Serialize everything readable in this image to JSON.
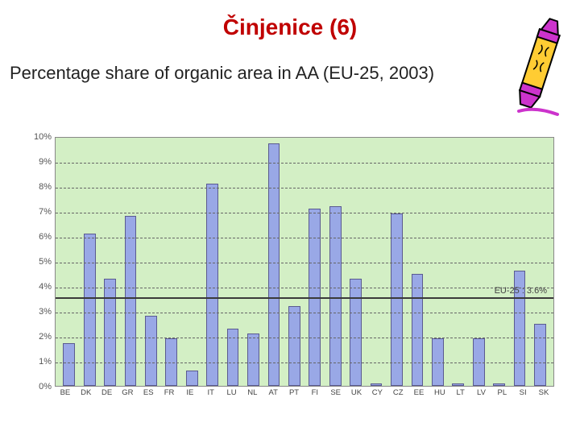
{
  "title": "Činjenice (6)",
  "subtitle": "Percentage share of organic area in AA (EU-25, 2003)",
  "chart": {
    "type": "bar",
    "background_color": "#d3efc5",
    "grid_color": "#666666",
    "bar_fill": "#99a8e6",
    "bar_border": "#5a5a90",
    "axis_font_family": "Arial",
    "ylabel_fontsize": 11,
    "xlabel_fontsize": 9.5,
    "ylim": [
      0,
      10
    ],
    "ytick_step": 1,
    "yticks": [
      "0%",
      "1%",
      "2%",
      "3%",
      "4%",
      "5%",
      "6%",
      "7%",
      "8%",
      "9%",
      "10%"
    ],
    "reference_line": {
      "value": 3.6,
      "label": "EU-25 : 3.6%",
      "color": "#3a3a3a"
    },
    "categories": [
      "BE",
      "DK",
      "DE",
      "GR",
      "ES",
      "FR",
      "IE",
      "IT",
      "LU",
      "NL",
      "AT",
      "PT",
      "FI",
      "SE",
      "UK",
      "CY",
      "CZ",
      "EE",
      "HU",
      "LT",
      "LV",
      "PL",
      "SI",
      "SK"
    ],
    "values": [
      1.7,
      6.1,
      4.3,
      6.8,
      2.8,
      1.9,
      0.6,
      8.1,
      2.3,
      2.1,
      9.7,
      3.2,
      7.1,
      7.2,
      4.3,
      0.1,
      6.9,
      4.5,
      1.9,
      0.1,
      1.9,
      0.1,
      4.6,
      2.5
    ]
  },
  "crayon": {
    "body_color": "#cc33cc",
    "wrap_color": "#ffcc33",
    "outline": "#000000"
  }
}
